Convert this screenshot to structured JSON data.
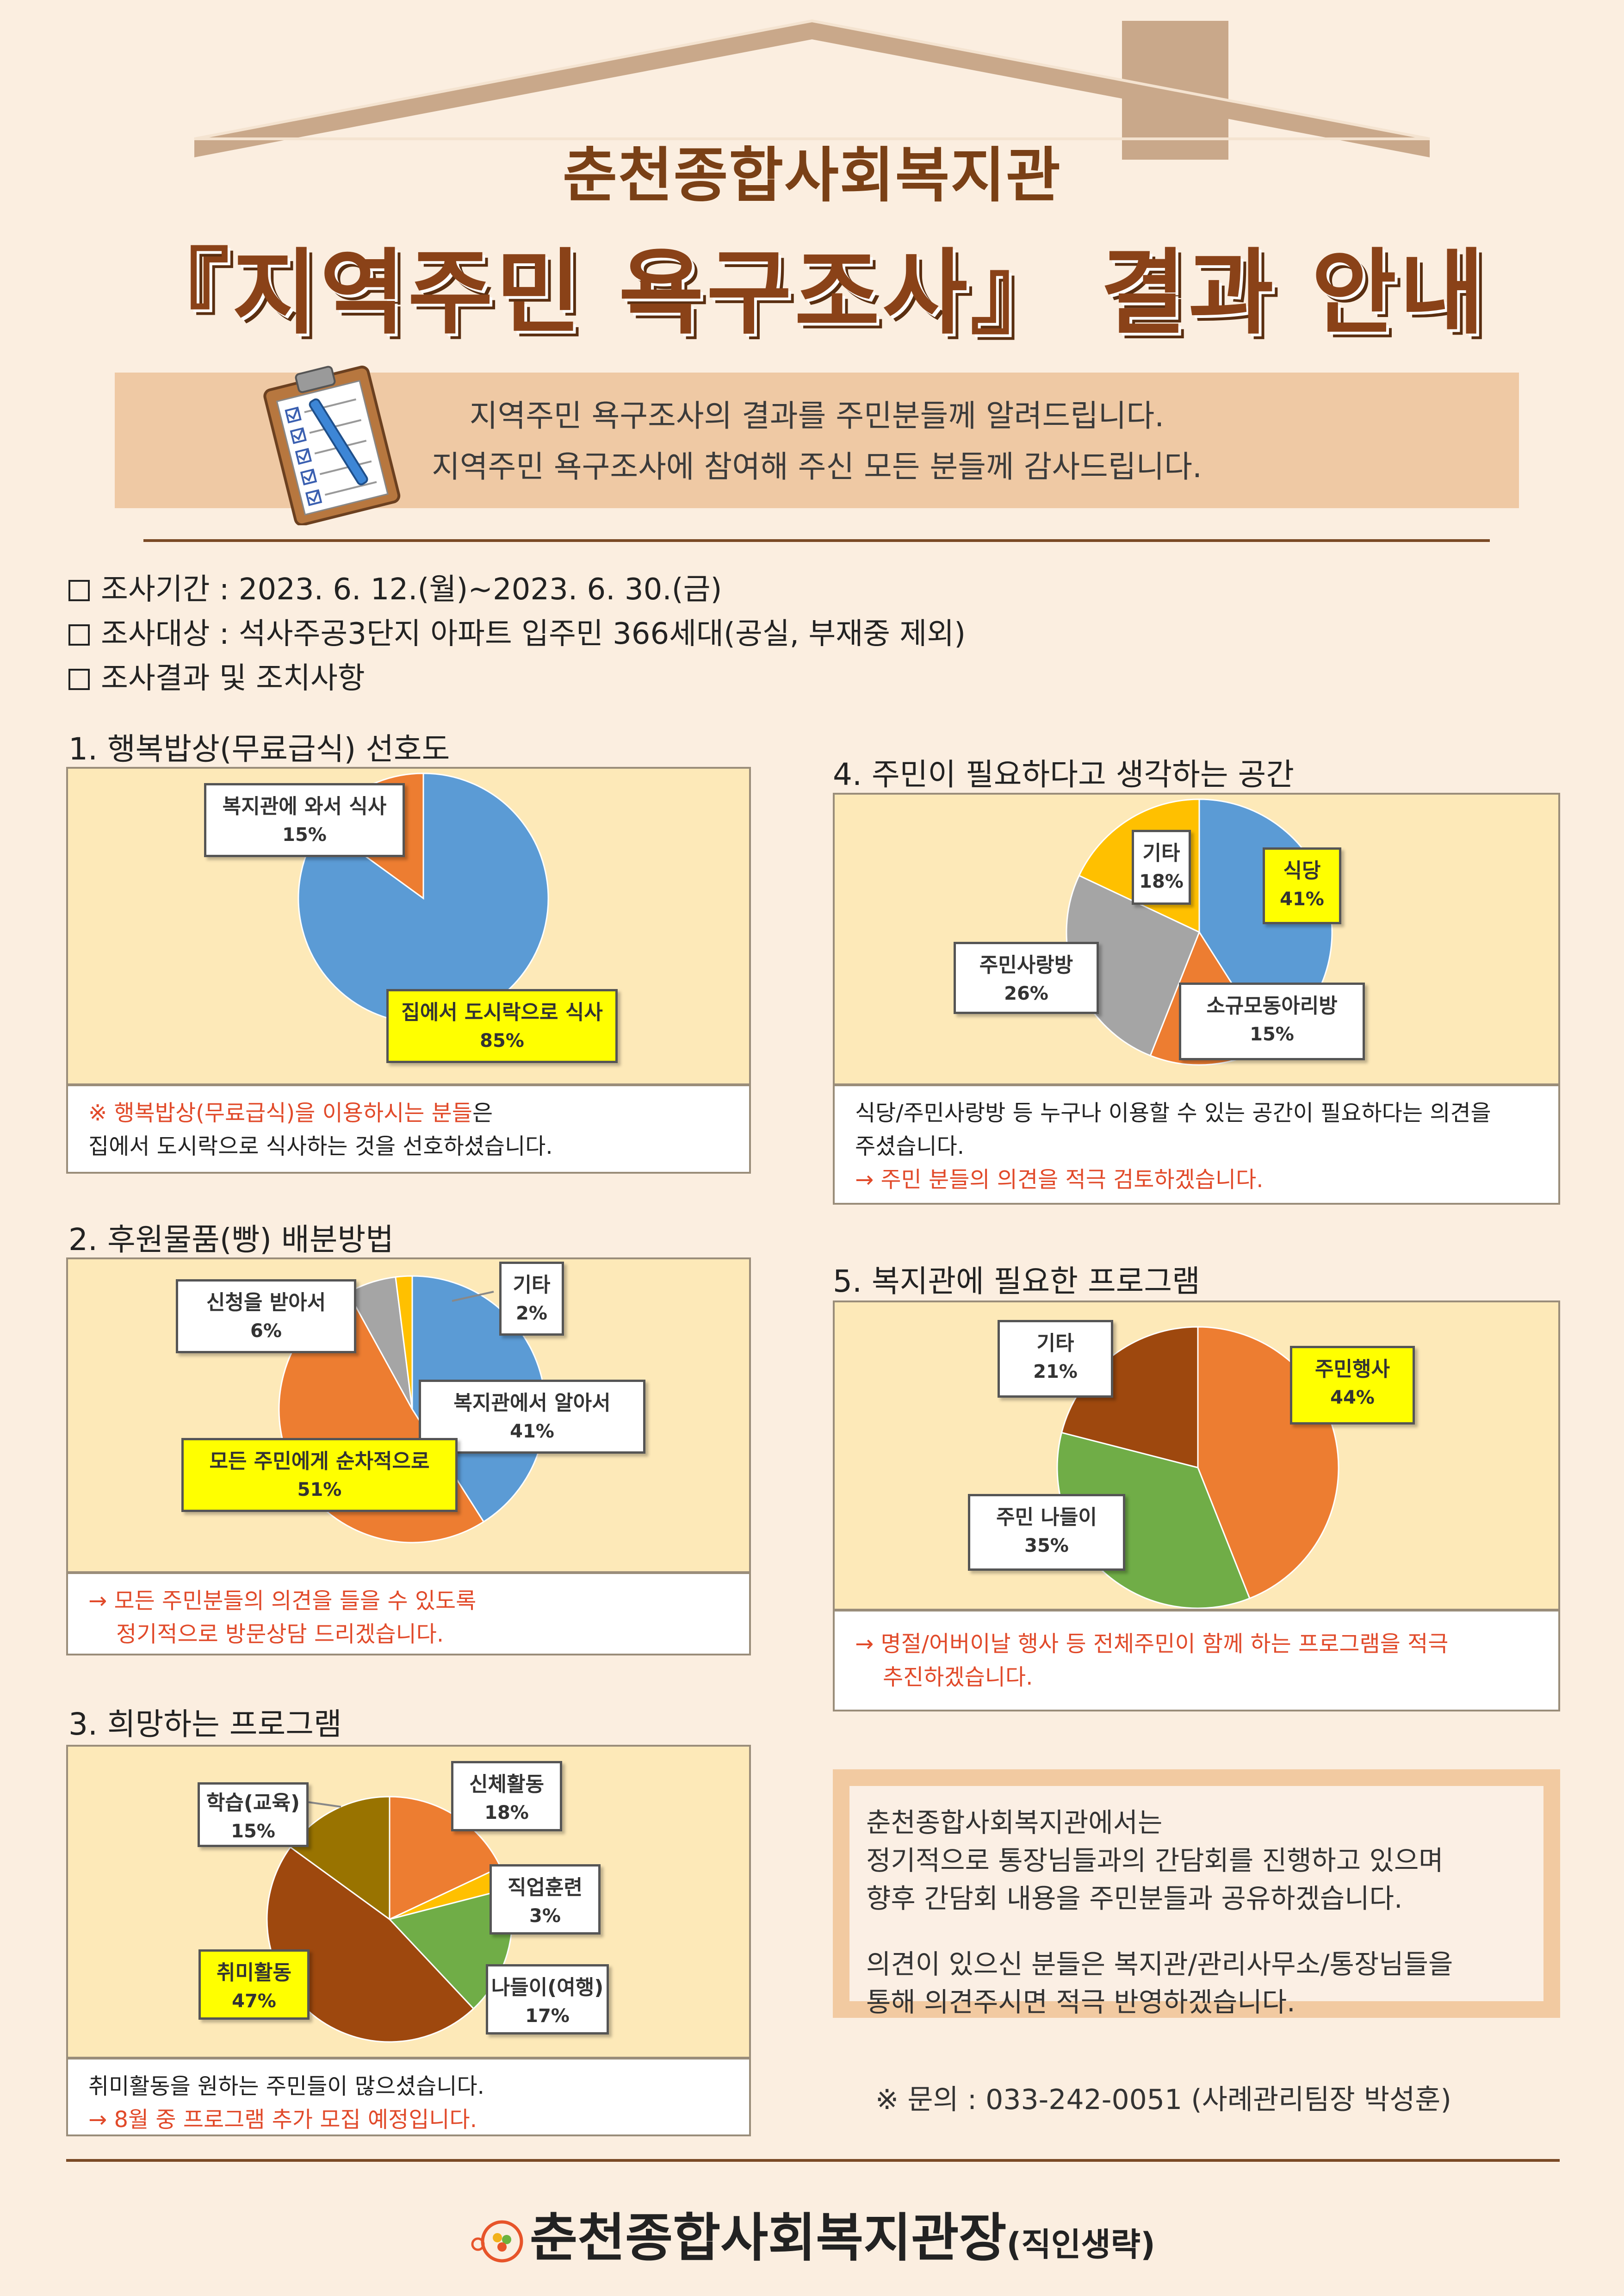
{
  "header": {
    "org_title": "춘천종합사회복지관",
    "main_title": "『지역주민 욕구조사』 결과 안내"
  },
  "intro": {
    "line1": "지역주민 욕구조사의 결과를 주민분들께 알려드립니다.",
    "line2": "지역주민 욕구조사에 참여해 주신 모든 분들께 감사드립니다."
  },
  "info": {
    "period": "조사기간 : 2023. 6. 12.(월)~2023. 6. 30.(금)",
    "target": "조사대상 : 석사주공3단지 아파트 입주민 366세대(공실, 부재중 제외)",
    "results": "조사결과 및 조치사항"
  },
  "sections": [
    {
      "title": "1. 행복밥상(무료급식) 선호도",
      "note_red": "※ 행복밥상(무료급식)을 이용하시는 분들",
      "note_red_suffix": "은",
      "note_line2": "집에서 도시락으로 식사하는 것을 선호하셨습니다."
    },
    {
      "title": "2. 후원물품(빵) 배분방법",
      "note_line1": "→ 모든 주민분들의 의견을 들을 수 있도록",
      "note_line2": "정기적으로 방문상담 드리겠습니다."
    },
    {
      "title": "3. 희망하는 프로그램",
      "note_line1": "취미활동을 원하는 주민들이 많으셨습니다.",
      "note_line2": "→ 8월 중 프로그램 추가 모집 예정입니다."
    },
    {
      "title": "4. 주민이 필요하다고 생각하는 공간",
      "note_line1": "식당/주민사랑방 등 누구나 이용할 수 있는 공간이 필요하다는 의견을",
      "note_line2": "주셨습니다.",
      "note_line3": "→ 주민 분들의 의견을 적극 검토하겠습니다."
    },
    {
      "title": "5. 복지관에 필요한 프로그램",
      "note_line1": "→ 명절/어버이날 행사 등 전체주민이 함께 하는 프로그램을 적극",
      "note_line2": "추진하겠습니다."
    }
  ],
  "chart_data": [
    {
      "type": "pie",
      "categories": [
        "집에서 도시락으로 식사",
        "복지관에 와서 식사"
      ],
      "values": [
        85,
        15
      ],
      "labels": [
        "85%",
        "15%"
      ],
      "colors": [
        "#5b9bd5",
        "#ed7d31"
      ]
    },
    {
      "type": "pie",
      "categories": [
        "복지관에서 알아서",
        "모든 주민에게 순차적으로",
        "신청을 받아서",
        "기타"
      ],
      "values": [
        41,
        51,
        6,
        2
      ],
      "labels": [
        "41%",
        "51%",
        "6%",
        "2%"
      ],
      "colors": [
        "#5b9bd5",
        "#ed7d31",
        "#a5a5a5",
        "#ffc000"
      ]
    },
    {
      "type": "pie",
      "categories": [
        "신체활동",
        "직업훈련",
        "나들이(여행)",
        "취미활동",
        "학습(교육)"
      ],
      "values": [
        18,
        3,
        17,
        47,
        15
      ],
      "labels": [
        "18%",
        "3%",
        "17%",
        "47%",
        "15%"
      ],
      "colors": [
        "#ed7d31",
        "#ffc000",
        "#70ad47",
        "#9e480e",
        "#997300"
      ]
    },
    {
      "type": "pie",
      "categories": [
        "식당",
        "소규모동아리방",
        "주민사랑방",
        "기타"
      ],
      "values": [
        41,
        15,
        26,
        18
      ],
      "labels": [
        "41%",
        "15%",
        "26%",
        "18%"
      ],
      "colors": [
        "#5b9bd5",
        "#ed7d31",
        "#a5a5a5",
        "#ffc000"
      ]
    },
    {
      "type": "pie",
      "categories": [
        "주민행사",
        "주민 나들이",
        "기타"
      ],
      "values": [
        44,
        35,
        21
      ],
      "labels": [
        "44%",
        "35%",
        "21%"
      ],
      "colors": [
        "#ed7d31",
        "#70ad47",
        "#9e480e"
      ]
    }
  ],
  "contact": {
    "line1": "춘천종합사회복지관에서는",
    "line2": "정기적으로 통장님들과의 간담회를 진행하고 있으며",
    "line3": "향후 간담회 내용을 주민분들과 공유하겠습니다.",
    "line4": "의견이 있으신 분들은 복지관/관리사무소/통장님들을",
    "line5": "통해 의견주시면 적극 반영하겠습니다."
  },
  "inquiry": "※ 문의 : 033-242-0051 (사례관리팀장 박성훈)",
  "footer": {
    "name": "춘천종합사회복지관장",
    "suffix": "(직인생략)"
  }
}
